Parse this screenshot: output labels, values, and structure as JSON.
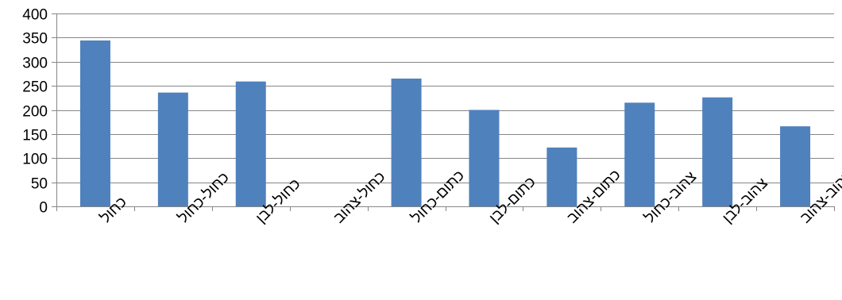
{
  "chart_data": {
    "type": "bar",
    "categories": [
      "כחול",
      "כחול-כחול",
      "כחול-לבן",
      "כחול-צהוב",
      "כתום-כחול",
      "כתום-לבן",
      "כתום-צהוב",
      "צהוב-כחול",
      "צהוב-לבן",
      "צהוב-צהוב"
    ],
    "values": [
      344,
      236,
      259,
      0,
      265,
      200,
      122,
      215,
      226,
      166
    ],
    "ylim": [
      0,
      400
    ],
    "yticks": [
      0,
      50,
      100,
      150,
      200,
      250,
      300,
      350,
      400
    ],
    "ytick_labels": [
      "0",
      "50",
      "100",
      "150",
      "200",
      "250",
      "300",
      "350",
      "400"
    ],
    "grid": true,
    "legend": "none",
    "title": "",
    "xlabel": "",
    "ylabel": "",
    "colors": {
      "bar": "#4f81bd",
      "grid": "#868686",
      "axis": "#868686"
    }
  }
}
